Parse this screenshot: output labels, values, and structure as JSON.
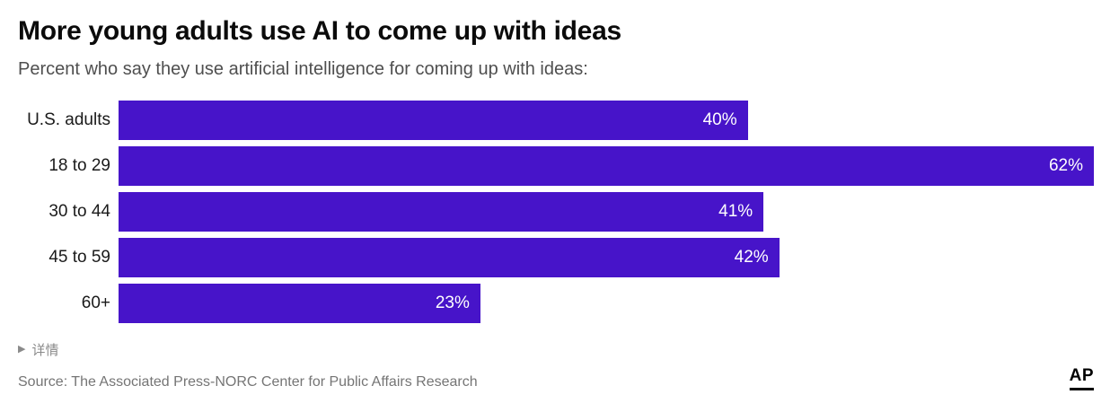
{
  "chart_data": {
    "type": "bar",
    "orientation": "horizontal",
    "title": "More young adults use AI to come up with ideas",
    "subtitle": "Percent who say they use artificial intelligence for coming up with ideas:",
    "categories": [
      "U.S. adults",
      "18 to 29",
      "30 to 44",
      "45 to 59",
      "60+"
    ],
    "values": [
      40,
      62,
      41,
      42,
      23
    ],
    "value_labels": [
      "40%",
      "62%",
      "41%",
      "42%",
      "23%"
    ],
    "xlim": [
      0,
      62
    ],
    "bar_color": "#4714c9",
    "value_label_color": "#ffffff",
    "grid": false,
    "legend": false
  },
  "footer": {
    "details_toggle_label": "详情",
    "disclosure_icon": "▶",
    "source": "Source: The Associated Press-NORC Center for Public Affairs Research",
    "logo_text": "AP"
  }
}
